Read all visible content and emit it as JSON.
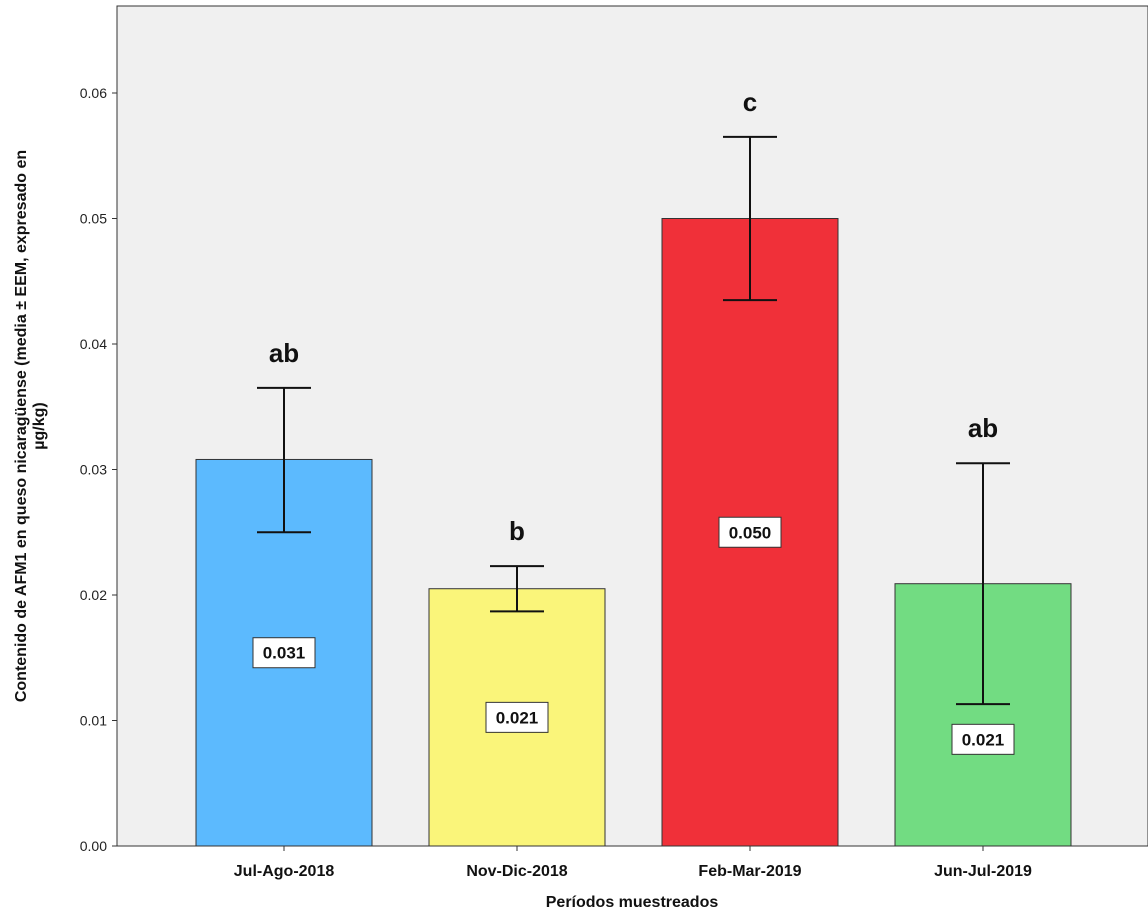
{
  "chart_data": {
    "type": "bar",
    "categories": [
      "Jul-Ago-2018",
      "Nov-Dic-2018",
      "Feb-Mar-2019",
      "Jun-Jul-2019"
    ],
    "values": [
      0.0308,
      0.0205,
      0.05,
      0.0209
    ],
    "value_labels": [
      "0.031",
      "0.021",
      "0.050",
      "0.021"
    ],
    "error_upper": [
      0.0365,
      0.0223,
      0.0565,
      0.0305
    ],
    "error_lower": [
      0.025,
      0.0187,
      0.0435,
      0.0113
    ],
    "significance_letters": [
      "ab",
      "b",
      "c",
      "ab"
    ],
    "colors": [
      "#5cbafe",
      "#faf57a",
      "#f03039",
      "#72dc82"
    ],
    "ylim": [
      0,
      0.0675
    ],
    "yticks": [
      0.0,
      0.01,
      0.02,
      0.03,
      0.04,
      0.05,
      0.06
    ],
    "ytick_labels": [
      "0.00",
      "0.01",
      "0.02",
      "0.03",
      "0.04",
      "0.05",
      "0.06"
    ],
    "xlabel": "Períodos muestreados",
    "ylabel_lines": [
      "Contenido de AFM1 en queso nicaragüense (media ± EEM, expresado en",
      "µg/kg)"
    ],
    "plot_background": "#f0f0f0",
    "grid": false,
    "legend": "none"
  }
}
